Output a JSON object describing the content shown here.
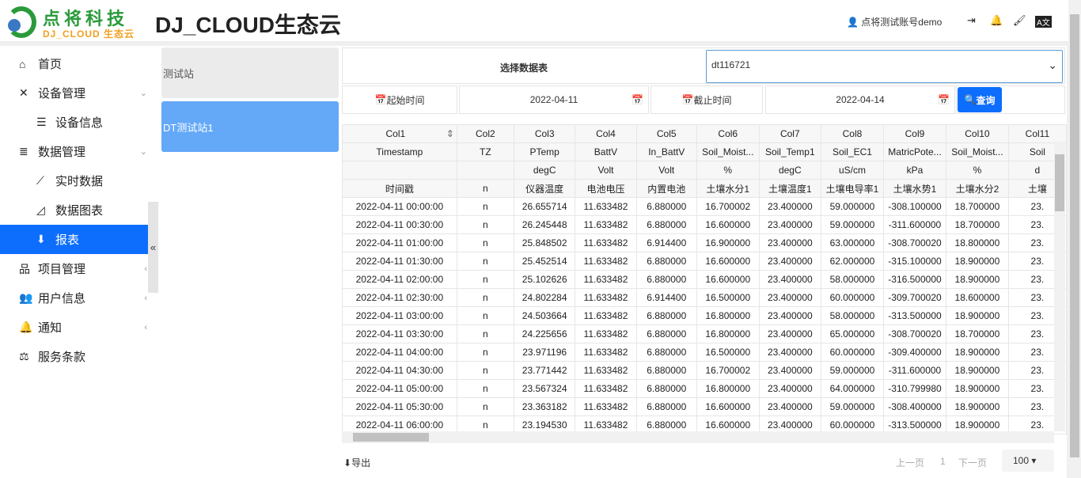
{
  "header": {
    "logo_cn": "点将科技",
    "logo_en": "DJ_CLOUD 生态云",
    "title": "DJ_CLOUD生态云",
    "user": "点将测试账号demo"
  },
  "sidebar": {
    "items": [
      {
        "label": "首页",
        "icon": "home-icon",
        "ic": "⌂",
        "sub": false
      },
      {
        "label": "设备管理",
        "icon": "tools-icon",
        "ic": "✕",
        "sub": false,
        "chev": "⌄"
      },
      {
        "label": "设备信息",
        "icon": "list-icon",
        "ic": "☰",
        "sub": true
      },
      {
        "label": "数据管理",
        "icon": "database-icon",
        "ic": "≣",
        "sub": false,
        "chev": "⌄"
      },
      {
        "label": "实时数据",
        "icon": "line-chart-icon",
        "ic": "⟋",
        "sub": true
      },
      {
        "label": "数据图表",
        "icon": "area-chart-icon",
        "ic": "◿",
        "sub": true
      },
      {
        "label": "报表",
        "icon": "download-circle-icon",
        "ic": "⬇",
        "sub": true,
        "active": true
      },
      {
        "label": "项目管理",
        "icon": "sitemap-icon",
        "ic": "品",
        "sub": false,
        "chev": "‹"
      },
      {
        "label": "用户信息",
        "icon": "users-cog-icon",
        "ic": "👥",
        "sub": false,
        "chev": "‹"
      },
      {
        "label": "通知",
        "icon": "bell-icon",
        "ic": "🔔",
        "sub": false,
        "chev": "‹"
      },
      {
        "label": "服务条款",
        "icon": "balance-icon",
        "ic": "⚖",
        "sub": false
      }
    ]
  },
  "stations": [
    "测试站",
    "DT测试站1"
  ],
  "filter": {
    "table_label": "选择数据表",
    "table_value": "dt116721",
    "start_label": "起始时间",
    "start_value": "2022-04-11",
    "end_label": "截止时间",
    "end_value": "2022-04-14",
    "query": "查询"
  },
  "table": {
    "header_rows": [
      [
        "Col1",
        "Col2",
        "Col3",
        "Col4",
        "Col5",
        "Col6",
        "Col7",
        "Col8",
        "Col9",
        "Col10",
        "Col11"
      ],
      [
        "Timestamp",
        "TZ",
        "PTemp",
        "BattV",
        "In_BattV",
        "Soil_Moist...",
        "Soil_Temp1",
        "Soil_EC1",
        "MatricPote...",
        "Soil_Moist...",
        "Soil"
      ],
      [
        "",
        "",
        "degC",
        "Volt",
        "Volt",
        "%",
        "degC",
        "uS/cm",
        "kPa",
        "%",
        "d"
      ],
      [
        "时间戳",
        "n",
        "仪器温度",
        "电池电压",
        "内置电池",
        "土壤水分1",
        "土壤温度1",
        "土壤电导率1",
        "土壤水势1",
        "土壤水分2",
        "土壤"
      ]
    ],
    "rows": [
      [
        "2022-04-11 00:00:00",
        "n",
        "26.655714",
        "11.633482",
        "6.880000",
        "16.700002",
        "23.400000",
        "59.000000",
        "-308.100000",
        "18.700000",
        "23."
      ],
      [
        "2022-04-11 00:30:00",
        "n",
        "26.245448",
        "11.633482",
        "6.880000",
        "16.600000",
        "23.400000",
        "59.000000",
        "-311.600000",
        "18.700000",
        "23."
      ],
      [
        "2022-04-11 01:00:00",
        "n",
        "25.848502",
        "11.633482",
        "6.914400",
        "16.900000",
        "23.400000",
        "63.000000",
        "-308.700020",
        "18.800000",
        "23."
      ],
      [
        "2022-04-11 01:30:00",
        "n",
        "25.452514",
        "11.633482",
        "6.880000",
        "16.600000",
        "23.400000",
        "62.000000",
        "-315.100000",
        "18.900000",
        "23."
      ],
      [
        "2022-04-11 02:00:00",
        "n",
        "25.102626",
        "11.633482",
        "6.880000",
        "16.600000",
        "23.400000",
        "58.000000",
        "-316.500000",
        "18.900000",
        "23."
      ],
      [
        "2022-04-11 02:30:00",
        "n",
        "24.802284",
        "11.633482",
        "6.914400",
        "16.500000",
        "23.400000",
        "60.000000",
        "-309.700020",
        "18.600000",
        "23."
      ],
      [
        "2022-04-11 03:00:00",
        "n",
        "24.503664",
        "11.633482",
        "6.880000",
        "16.800000",
        "23.400000",
        "58.000000",
        "-313.500000",
        "18.900000",
        "23."
      ],
      [
        "2022-04-11 03:30:00",
        "n",
        "24.225656",
        "11.633482",
        "6.880000",
        "16.800000",
        "23.400000",
        "65.000000",
        "-308.700020",
        "18.700000",
        "23."
      ],
      [
        "2022-04-11 04:00:00",
        "n",
        "23.971196",
        "11.633482",
        "6.880000",
        "16.500000",
        "23.400000",
        "60.000000",
        "-309.400000",
        "18.900000",
        "23."
      ],
      [
        "2022-04-11 04:30:00",
        "n",
        "23.771442",
        "11.633482",
        "6.880000",
        "16.700002",
        "23.400000",
        "59.000000",
        "-311.600000",
        "18.900000",
        "23."
      ],
      [
        "2022-04-11 05:00:00",
        "n",
        "23.567324",
        "11.633482",
        "6.880000",
        "16.800000",
        "23.400000",
        "64.000000",
        "-310.799980",
        "18.900000",
        "23."
      ],
      [
        "2022-04-11 05:30:00",
        "n",
        "23.363182",
        "11.633482",
        "6.880000",
        "16.600000",
        "23.400000",
        "59.000000",
        "-308.400000",
        "18.900000",
        "23."
      ],
      [
        "2022-04-11 06:00:00",
        "n",
        "23.194530",
        "11.633482",
        "6.880000",
        "16.600000",
        "23.400000",
        "60.000000",
        "-313.500000",
        "18.900000",
        "23."
      ]
    ]
  },
  "footer": {
    "export": "导出",
    "prev": "上一页",
    "page": "1",
    "next": "下一页",
    "page_size": "100"
  },
  "colors": {
    "accent": "#0d6efd",
    "station_active": "#64a8f8",
    "logo_green": "#2a9a3a",
    "logo_orange": "#f0a020"
  }
}
